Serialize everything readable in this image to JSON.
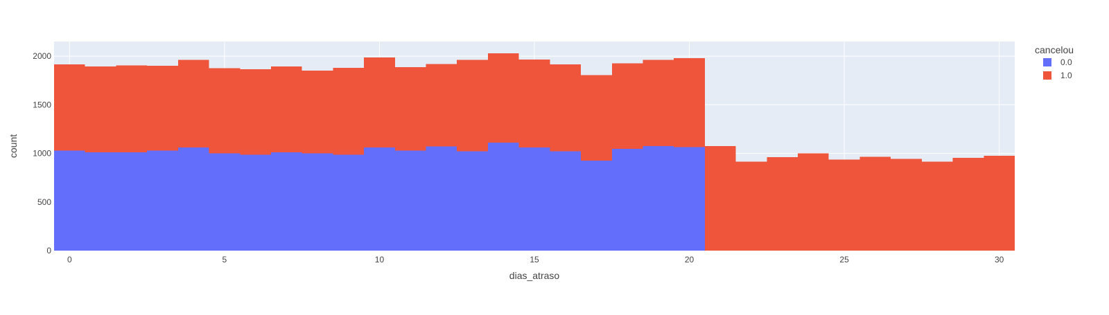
{
  "chart_data": {
    "type": "bar",
    "barmode": "stack",
    "title": "",
    "xlabel": "dias_atraso",
    "ylabel": "count",
    "xlim": [
      -0.5,
      30.5
    ],
    "ylim": [
      0,
      2150
    ],
    "xticks": [
      0,
      5,
      10,
      15,
      20,
      25,
      30
    ],
    "yticks": [
      0,
      500,
      1000,
      1500,
      2000
    ],
    "grid": true,
    "legend_title": "cancelou",
    "legend_position": "top-right",
    "plot_background": "#E5ECF6",
    "x": [
      0,
      1,
      2,
      3,
      4,
      5,
      6,
      7,
      8,
      9,
      10,
      11,
      12,
      13,
      14,
      15,
      16,
      17,
      18,
      19,
      20,
      21,
      22,
      23,
      24,
      25,
      26,
      27,
      28,
      29,
      30
    ],
    "series": [
      {
        "name": "0.0",
        "color": "#636EFA",
        "values": [
          1030,
          1010,
          1010,
          1030,
          1060,
          1000,
          985,
          1010,
          1000,
          985,
          1060,
          1030,
          1070,
          1020,
          1110,
          1060,
          1020,
          925,
          1045,
          1075,
          1065,
          0,
          0,
          0,
          0,
          0,
          0,
          0,
          0,
          0,
          0
        ]
      },
      {
        "name": "1.0",
        "color": "#EF553B",
        "values": [
          885,
          885,
          895,
          870,
          900,
          875,
          880,
          885,
          850,
          895,
          925,
          855,
          850,
          940,
          920,
          905,
          895,
          880,
          880,
          885,
          915,
          1075,
          915,
          960,
          1000,
          935,
          965,
          945,
          915,
          955,
          975
        ]
      }
    ]
  }
}
